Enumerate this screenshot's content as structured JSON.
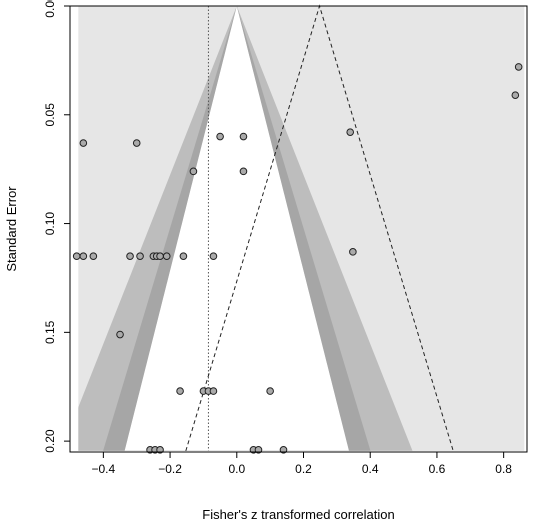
{
  "chart_data": {
    "type": "scatter",
    "subtype": "contour-enhanced funnel plot",
    "title": "",
    "xlabel": "Fisher's z transformed correlation",
    "ylabel": "Standard Error",
    "xlim": [
      -0.5,
      0.87
    ],
    "ylim": [
      0.205,
      0.0
    ],
    "y_axis_reversed": true,
    "x_ticks": [
      -0.4,
      -0.2,
      0.0,
      0.2,
      0.4,
      0.6,
      0.8
    ],
    "x_tick_labels": [
      "−0.4",
      "−0.2",
      "0.0",
      "0.2",
      "0.4",
      "0.6",
      "0.8"
    ],
    "y_ticks": [
      0.0,
      0.05,
      0.1,
      0.15,
      0.2
    ],
    "y_tick_labels": [
      "0.00",
      "0.05",
      "0.10",
      "0.15",
      "0.20"
    ],
    "grid": false,
    "legend": "none",
    "center_null": 0.0,
    "contour_z": [
      1.645,
      1.96,
      2.576
    ],
    "summary_estimate": -0.085,
    "pseudo_ci_center": 0.248,
    "pseudo_ci_z": 1.96,
    "colors": {
      "plot_region": "#e6e6e6",
      "contour_outer": "#bdbdbd",
      "contour_middle": "#a6a6a6",
      "contour_inner": "#7d7d7d",
      "funnel_center": "#ffffff",
      "points_fill": "#aaaaaa",
      "points_stroke": "#222222"
    },
    "points": [
      {
        "x": 0.845,
        "y": 0.028
      },
      {
        "x": 0.835,
        "y": 0.041
      },
      {
        "x": 0.34,
        "y": 0.058
      },
      {
        "x": 0.348,
        "y": 0.113
      },
      {
        "x": -0.46,
        "y": 0.063
      },
      {
        "x": -0.3,
        "y": 0.063
      },
      {
        "x": -0.05,
        "y": 0.06
      },
      {
        "x": 0.02,
        "y": 0.06
      },
      {
        "x": -0.13,
        "y": 0.076
      },
      {
        "x": 0.02,
        "y": 0.076
      },
      {
        "x": -0.48,
        "y": 0.115
      },
      {
        "x": -0.46,
        "y": 0.115
      },
      {
        "x": -0.43,
        "y": 0.115
      },
      {
        "x": -0.32,
        "y": 0.115
      },
      {
        "x": -0.29,
        "y": 0.115
      },
      {
        "x": -0.25,
        "y": 0.115
      },
      {
        "x": -0.24,
        "y": 0.115
      },
      {
        "x": -0.23,
        "y": 0.115
      },
      {
        "x": -0.21,
        "y": 0.115
      },
      {
        "x": -0.16,
        "y": 0.115
      },
      {
        "x": -0.07,
        "y": 0.115
      },
      {
        "x": -0.35,
        "y": 0.151
      },
      {
        "x": -0.17,
        "y": 0.177
      },
      {
        "x": -0.1,
        "y": 0.177
      },
      {
        "x": -0.085,
        "y": 0.177
      },
      {
        "x": -0.07,
        "y": 0.177
      },
      {
        "x": 0.1,
        "y": 0.177
      },
      {
        "x": -0.26,
        "y": 0.204
      },
      {
        "x": -0.245,
        "y": 0.204
      },
      {
        "x": -0.23,
        "y": 0.204
      },
      {
        "x": 0.05,
        "y": 0.204
      },
      {
        "x": 0.065,
        "y": 0.204
      },
      {
        "x": 0.14,
        "y": 0.204
      }
    ]
  }
}
